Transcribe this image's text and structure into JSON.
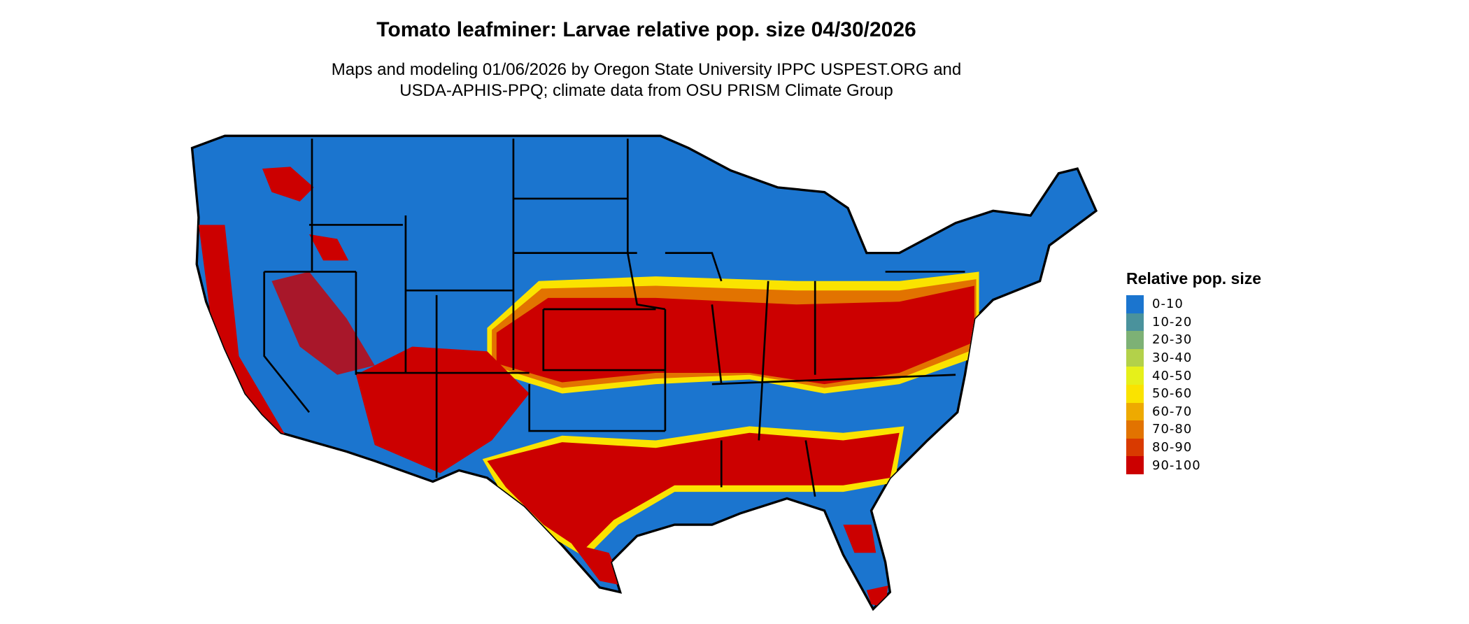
{
  "title": "Tomato leafminer: Larvae relative pop. size 04/30/2026",
  "subtitle_lines": [
    "Maps and modeling 01/06/2026 by Oregon State University IPPC USPEST.ORG and",
    "USDA-APHIS-PPQ; climate data from OSU PRISM Climate Group"
  ],
  "map": {
    "region": "Contiguous United States",
    "base_color": "#1b75cf",
    "border_color": "#000000"
  },
  "legend": {
    "title": "Relative pop. size",
    "placement": "right",
    "items": [
      {
        "label": "0-10",
        "color": "#1b75cf"
      },
      {
        "label": "10-20",
        "color": "#4a929c"
      },
      {
        "label": "20-30",
        "color": "#7db175"
      },
      {
        "label": "30-40",
        "color": "#b3d14a"
      },
      {
        "label": "40-50",
        "color": "#e6f01a"
      },
      {
        "label": "50-60",
        "color": "#fae300"
      },
      {
        "label": "60-70",
        "color": "#eeaa00"
      },
      {
        "label": "70-80",
        "color": "#e27300"
      },
      {
        "label": "80-90",
        "color": "#d93a00"
      },
      {
        "label": "90-100",
        "color": "#cc0000"
      }
    ]
  }
}
